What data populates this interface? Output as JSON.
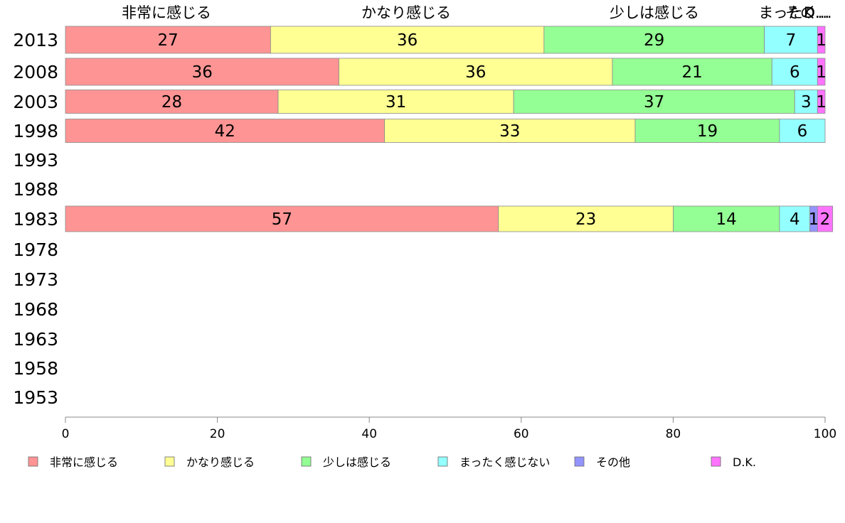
{
  "chart_data": {
    "type": "bar",
    "orientation": "horizontal",
    "stacked": true,
    "categories": [
      "2013",
      "2008",
      "2003",
      "1998",
      "1993",
      "1988",
      "1983",
      "1978",
      "1973",
      "1968",
      "1963",
      "1958",
      "1953"
    ],
    "series": [
      {
        "name": "非常に感じる",
        "color": "#ff9494",
        "values": [
          27,
          36,
          28,
          42,
          null,
          null,
          57,
          null,
          null,
          null,
          null,
          null,
          null
        ]
      },
      {
        "name": "かなり感じる",
        "color": "#ffff94",
        "values": [
          36,
          36,
          31,
          33,
          null,
          null,
          23,
          null,
          null,
          null,
          null,
          null,
          null
        ]
      },
      {
        "name": "少しは感じる",
        "color": "#94ff94",
        "values": [
          29,
          21,
          37,
          19,
          null,
          null,
          14,
          null,
          null,
          null,
          null,
          null,
          null
        ]
      },
      {
        "name": "まったく感じない",
        "color": "#94ffff",
        "values": [
          7,
          6,
          3,
          6,
          null,
          null,
          4,
          null,
          null,
          null,
          null,
          null,
          null
        ]
      },
      {
        "name": "その他",
        "color": "#9494ff",
        "values": [
          0,
          0,
          0,
          0,
          null,
          null,
          1,
          null,
          null,
          null,
          null,
          null,
          null
        ]
      },
      {
        "name": "D.K.",
        "color": "#ff74ff",
        "values": [
          1,
          1,
          1,
          0,
          null,
          null,
          2,
          null,
          null,
          null,
          null,
          null,
          null
        ]
      }
    ],
    "top_labels": [
      "非常に感じる",
      "かなり感じる",
      "少しは感じる",
      "まったく...",
      "その...",
      "D..."
    ],
    "xlim": [
      0,
      100
    ],
    "xticks": [
      0,
      20,
      40,
      60,
      80,
      100
    ],
    "grid": false,
    "legend_position": "bottom"
  }
}
